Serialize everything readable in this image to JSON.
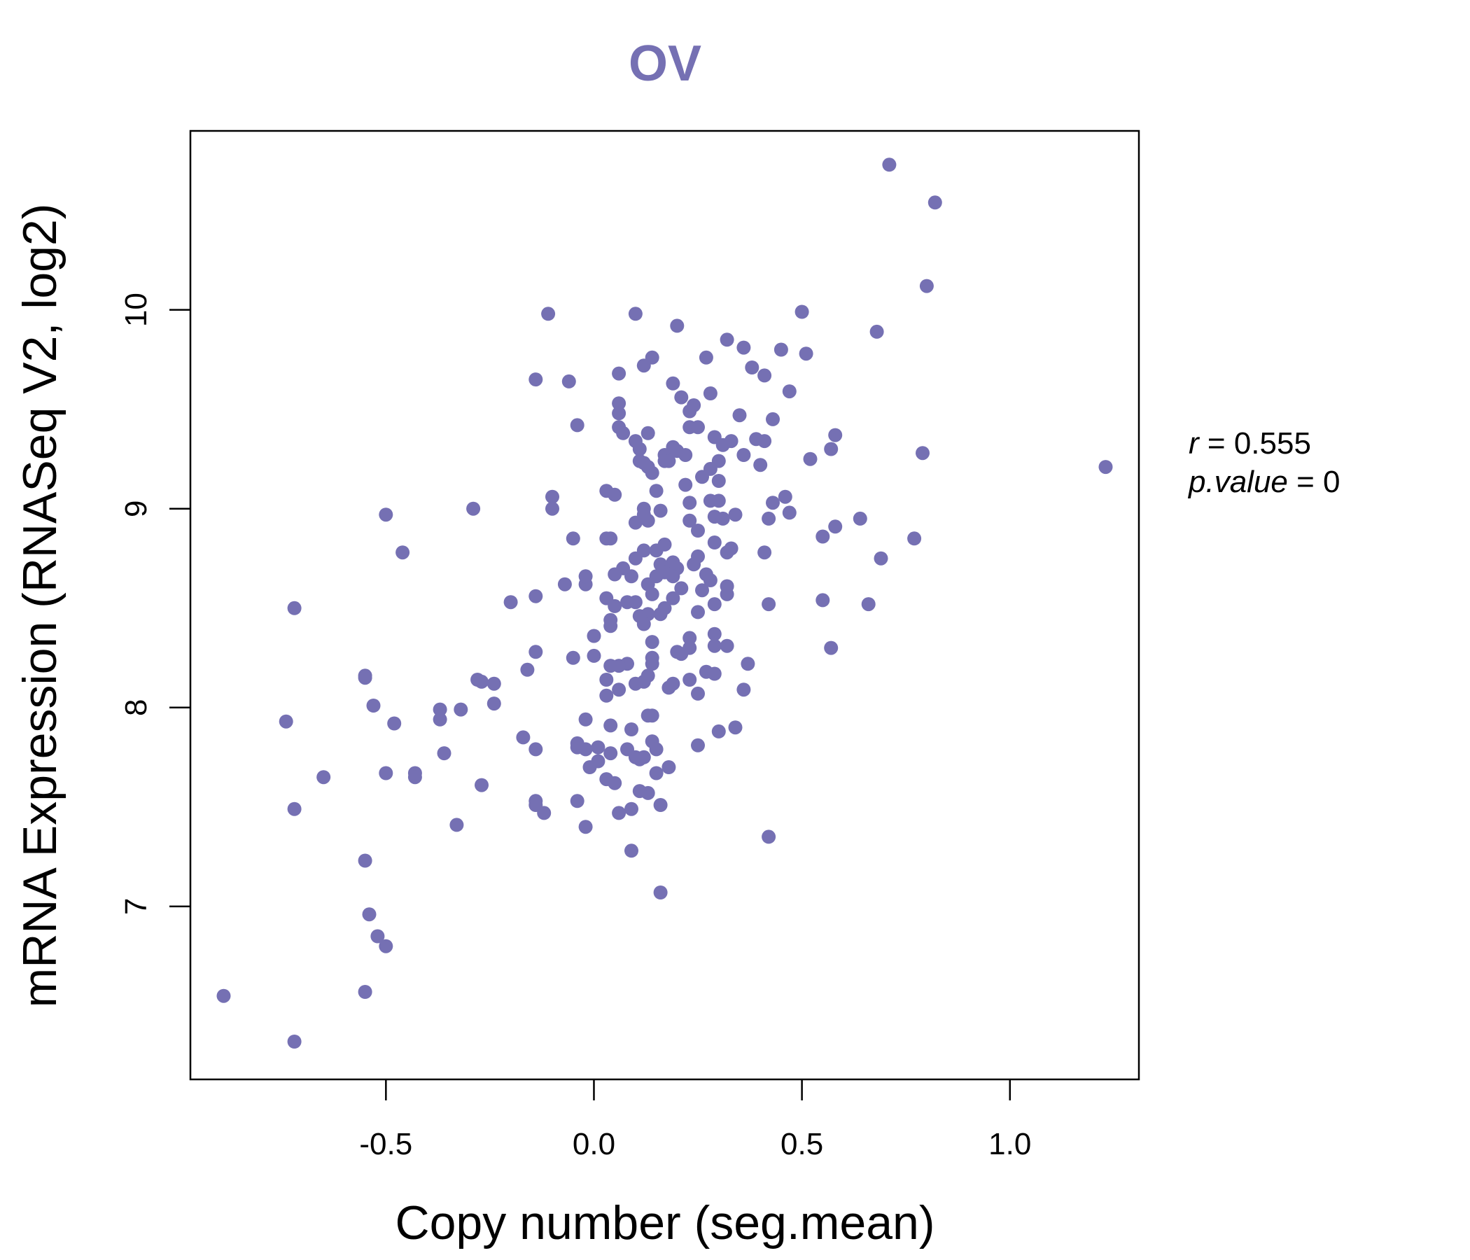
{
  "colors": {
    "accent": "#7570b3",
    "axis": "#000000",
    "background": "#ffffff"
  },
  "chart_data": {
    "type": "scatter",
    "title": "OV",
    "xlabel": "Copy number (seg.mean)",
    "ylabel": "mRNA Expression (RNASeq V2, log2)",
    "xlim": [
      -0.97,
      1.31
    ],
    "ylim": [
      6.13,
      10.9
    ],
    "xticks": [
      -0.5,
      0.0,
      0.5,
      1.0
    ],
    "xtick_labels": [
      "-0.5",
      "0.0",
      "0.5",
      "1.0"
    ],
    "yticks": [
      7,
      8,
      9,
      10
    ],
    "ytick_labels": [
      "7",
      "8",
      "9",
      "10"
    ],
    "grid": false,
    "legend": "none",
    "stats": {
      "r_label": "r",
      "r_value": "0.555",
      "p_label": "p.value",
      "p_value": "0"
    },
    "points": [
      [
        0.71,
        10.73
      ],
      [
        0.82,
        10.54
      ],
      [
        0.8,
        10.12
      ],
      [
        0.5,
        9.99
      ],
      [
        0.68,
        9.89
      ],
      [
        0.51,
        9.78
      ],
      [
        0.45,
        9.8
      ],
      [
        0.36,
        9.81
      ],
      [
        0.32,
        9.85
      ],
      [
        0.27,
        9.76
      ],
      [
        0.2,
        9.92
      ],
      [
        0.1,
        9.98
      ],
      [
        0.14,
        9.76
      ],
      [
        0.12,
        9.72
      ],
      [
        0.06,
        9.68
      ],
      [
        -0.11,
        9.98
      ],
      [
        -0.14,
        9.65
      ],
      [
        -0.06,
        9.64
      ],
      [
        0.38,
        9.71
      ],
      [
        0.41,
        9.67
      ],
      [
        0.47,
        9.59
      ],
      [
        0.19,
        9.63
      ],
      [
        0.21,
        9.56
      ],
      [
        0.28,
        9.58
      ],
      [
        0.24,
        9.52
      ],
      [
        0.23,
        9.49
      ],
      [
        0.43,
        9.45
      ],
      [
        0.35,
        9.47
      ],
      [
        0.06,
        9.53
      ],
      [
        0.06,
        9.48
      ],
      [
        -0.04,
        9.42
      ],
      [
        0.06,
        9.41
      ],
      [
        0.07,
        9.38
      ],
      [
        0.13,
        9.38
      ],
      [
        0.1,
        9.34
      ],
      [
        0.11,
        9.3
      ],
      [
        0.23,
        9.41
      ],
      [
        0.25,
        9.41
      ],
      [
        0.29,
        9.36
      ],
      [
        0.31,
        9.32
      ],
      [
        0.33,
        9.34
      ],
      [
        0.39,
        9.35
      ],
      [
        0.41,
        9.34
      ],
      [
        0.36,
        9.27
      ],
      [
        0.4,
        9.22
      ],
      [
        0.58,
        9.37
      ],
      [
        0.57,
        9.3
      ],
      [
        0.52,
        9.25
      ],
      [
        0.79,
        9.28
      ],
      [
        1.23,
        9.21
      ],
      [
        0.17,
        9.27
      ],
      [
        0.19,
        9.31
      ],
      [
        0.2,
        9.29
      ],
      [
        0.22,
        9.27
      ],
      [
        0.18,
        9.24
      ],
      [
        0.13,
        9.21
      ],
      [
        0.12,
        9.23
      ],
      [
        0.11,
        9.24
      ],
      [
        0.14,
        9.18
      ],
      [
        0.17,
        9.24
      ],
      [
        0.3,
        9.24
      ],
      [
        0.28,
        9.2
      ],
      [
        0.26,
        9.16
      ],
      [
        0.3,
        9.14
      ],
      [
        0.22,
        9.12
      ],
      [
        0.15,
        9.09
      ],
      [
        0.03,
        9.09
      ],
      [
        0.05,
        9.07
      ],
      [
        -0.1,
        9.06
      ],
      [
        -0.1,
        9.0
      ],
      [
        -0.29,
        9.0
      ],
      [
        -0.5,
        8.97
      ],
      [
        0.12,
        9.0
      ],
      [
        0.12,
        8.97
      ],
      [
        0.13,
        8.94
      ],
      [
        0.16,
        8.99
      ],
      [
        0.1,
        8.93
      ],
      [
        0.23,
        9.03
      ],
      [
        0.28,
        9.04
      ],
      [
        0.3,
        9.04
      ],
      [
        0.29,
        8.96
      ],
      [
        0.31,
        8.95
      ],
      [
        0.34,
        8.97
      ],
      [
        0.23,
        8.94
      ],
      [
        0.25,
        8.89
      ],
      [
        0.42,
        8.95
      ],
      [
        0.43,
        9.03
      ],
      [
        0.46,
        9.06
      ],
      [
        0.47,
        8.98
      ],
      [
        0.58,
        8.91
      ],
      [
        0.64,
        8.95
      ],
      [
        0.55,
        8.86
      ],
      [
        0.77,
        8.85
      ],
      [
        0.69,
        8.75
      ],
      [
        0.41,
        8.78
      ],
      [
        0.32,
        8.78
      ],
      [
        0.33,
        8.8
      ],
      [
        0.29,
        8.83
      ],
      [
        0.25,
        8.76
      ],
      [
        0.24,
        8.72
      ],
      [
        0.19,
        8.73
      ],
      [
        0.2,
        8.7
      ],
      [
        0.17,
        8.82
      ],
      [
        0.12,
        8.79
      ],
      [
        0.1,
        8.75
      ],
      [
        0.15,
        8.79
      ],
      [
        0.16,
        8.72
      ],
      [
        0.17,
        8.68
      ],
      [
        0.19,
        8.66
      ],
      [
        0.15,
        8.66
      ],
      [
        0.13,
        8.62
      ],
      [
        0.14,
        8.57
      ],
      [
        0.09,
        8.66
      ],
      [
        0.07,
        8.7
      ],
      [
        0.05,
        8.67
      ],
      [
        0.04,
        8.85
      ],
      [
        0.03,
        8.85
      ],
      [
        -0.05,
        8.85
      ],
      [
        -0.46,
        8.78
      ],
      [
        -0.72,
        8.5
      ],
      [
        -0.2,
        8.53
      ],
      [
        -0.14,
        8.56
      ],
      [
        -0.07,
        8.62
      ],
      [
        -0.02,
        8.62
      ],
      [
        -0.02,
        8.66
      ],
      [
        0.27,
        8.67
      ],
      [
        0.28,
        8.64
      ],
      [
        0.26,
        8.59
      ],
      [
        0.21,
        8.6
      ],
      [
        0.19,
        8.55
      ],
      [
        0.17,
        8.5
      ],
      [
        0.16,
        8.47
      ],
      [
        0.13,
        8.47
      ],
      [
        0.12,
        8.42
      ],
      [
        0.11,
        8.46
      ],
      [
        0.1,
        8.53
      ],
      [
        0.08,
        8.53
      ],
      [
        0.05,
        8.51
      ],
      [
        0.04,
        8.44
      ],
      [
        0.04,
        8.41
      ],
      [
        0.03,
        8.55
      ],
      [
        0.32,
        8.57
      ],
      [
        0.32,
        8.61
      ],
      [
        0.29,
        8.52
      ],
      [
        0.25,
        8.48
      ],
      [
        0.42,
        8.52
      ],
      [
        0.55,
        8.54
      ],
      [
        0.66,
        8.52
      ],
      [
        0.57,
        8.3
      ],
      [
        0.37,
        8.22
      ],
      [
        0.32,
        8.31
      ],
      [
        0.29,
        8.31
      ],
      [
        0.29,
        8.37
      ],
      [
        0.23,
        8.35
      ],
      [
        0.23,
        8.3
      ],
      [
        0.21,
        8.27
      ],
      [
        0.2,
        8.28
      ],
      [
        0.14,
        8.33
      ],
      [
        0.14,
        8.25
      ],
      [
        0.14,
        8.22
      ],
      [
        0.13,
        8.16
      ],
      [
        0.12,
        8.13
      ],
      [
        0.1,
        8.12
      ],
      [
        0.08,
        8.22
      ],
      [
        0.06,
        8.21
      ],
      [
        0.04,
        8.21
      ],
      [
        0.03,
        8.14
      ],
      [
        0.06,
        8.09
      ],
      [
        0.03,
        8.06
      ],
      [
        0.0,
        8.36
      ],
      [
        0.0,
        8.26
      ],
      [
        -0.05,
        8.25
      ],
      [
        -0.14,
        8.28
      ],
      [
        -0.16,
        8.19
      ],
      [
        -0.27,
        8.13
      ],
      [
        -0.24,
        8.12
      ],
      [
        -0.24,
        8.02
      ],
      [
        -0.32,
        7.99
      ],
      [
        -0.37,
        7.99
      ],
      [
        -0.37,
        7.94
      ],
      [
        -0.48,
        7.92
      ],
      [
        -0.53,
        8.01
      ],
      [
        -0.55,
        8.16
      ],
      [
        -0.55,
        8.15
      ],
      [
        -0.74,
        7.93
      ],
      [
        -0.65,
        7.65
      ],
      [
        -0.72,
        7.49
      ],
      [
        -0.5,
        7.67
      ],
      [
        -0.43,
        7.67
      ],
      [
        -0.43,
        7.65
      ],
      [
        -0.36,
        7.77
      ],
      [
        -0.33,
        7.41
      ],
      [
        -0.27,
        7.61
      ],
      [
        -0.17,
        7.85
      ],
      [
        -0.14,
        7.79
      ],
      [
        -0.14,
        7.53
      ],
      [
        -0.14,
        7.51
      ],
      [
        -0.12,
        7.47
      ],
      [
        -0.04,
        7.82
      ],
      [
        -0.04,
        7.8
      ],
      [
        -0.02,
        7.94
      ],
      [
        -0.02,
        7.79
      ],
      [
        -0.01,
        7.7
      ],
      [
        0.01,
        7.8
      ],
      [
        0.01,
        7.73
      ],
      [
        0.03,
        7.64
      ],
      [
        0.04,
        7.91
      ],
      [
        0.04,
        7.77
      ],
      [
        0.05,
        7.62
      ],
      [
        0.08,
        7.79
      ],
      [
        0.09,
        7.89
      ],
      [
        0.1,
        7.75
      ],
      [
        0.11,
        7.74
      ],
      [
        0.12,
        7.75
      ],
      [
        0.13,
        7.57
      ],
      [
        0.14,
        7.83
      ],
      [
        0.15,
        7.79
      ],
      [
        0.15,
        7.67
      ],
      [
        0.14,
        7.96
      ],
      [
        0.13,
        7.96
      ],
      [
        0.18,
        8.1
      ],
      [
        0.19,
        8.12
      ],
      [
        0.23,
        8.14
      ],
      [
        0.25,
        8.07
      ],
      [
        0.27,
        8.18
      ],
      [
        0.29,
        8.17
      ],
      [
        0.3,
        7.88
      ],
      [
        0.34,
        7.9
      ],
      [
        0.36,
        8.09
      ],
      [
        0.25,
        7.81
      ],
      [
        0.18,
        7.7
      ],
      [
        0.16,
        7.51
      ],
      [
        0.11,
        7.58
      ],
      [
        0.09,
        7.49
      ],
      [
        0.06,
        7.47
      ],
      [
        -0.04,
        7.53
      ],
      [
        -0.02,
        7.4
      ],
      [
        0.09,
        7.28
      ],
      [
        0.16,
        7.07
      ],
      [
        0.42,
        7.35
      ],
      [
        -0.55,
        7.23
      ],
      [
        -0.54,
        6.96
      ],
      [
        -0.52,
        6.85
      ],
      [
        -0.5,
        6.8
      ],
      [
        -0.55,
        6.57
      ],
      [
        -0.89,
        6.55
      ],
      [
        -0.72,
        6.32
      ],
      [
        -0.28,
        8.14
      ]
    ]
  }
}
